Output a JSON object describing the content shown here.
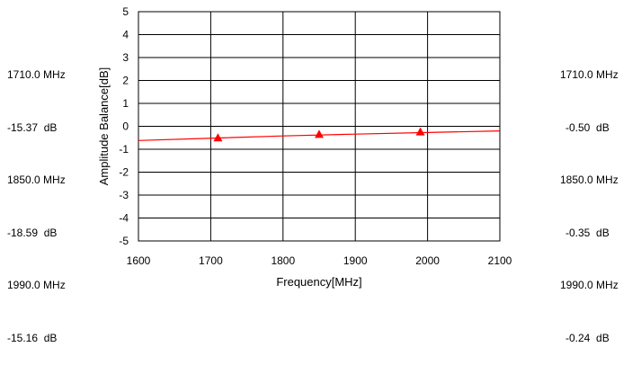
{
  "left_readout": [
    {
      "freq": "1710.0 MHz",
      "value": "-15.37  dB"
    },
    {
      "freq": "1850.0 MHz",
      "value": "-18.59  dB"
    },
    {
      "freq": "1990.0 MHz",
      "value": "-15.16  dB"
    }
  ],
  "right_readout": [
    {
      "freq": "1710.0 MHz",
      "value": "-0.50  dB"
    },
    {
      "freq": "1850.0 MHz",
      "value": "-0.35  dB"
    },
    {
      "freq": "1990.0 MHz",
      "value": "-0.24  dB"
    }
  ],
  "chart_data": {
    "type": "line",
    "title": "",
    "xlabel": "Frequency[MHz]",
    "ylabel": "Amplitude Balance[dB]",
    "xlim": [
      1600,
      2100
    ],
    "ylim": [
      -5,
      5
    ],
    "xticks": [
      1600,
      1700,
      1800,
      1900,
      2000,
      2100
    ],
    "yticks": [
      5,
      4,
      3,
      2,
      1,
      0,
      -1,
      -2,
      -3,
      -4,
      -5
    ],
    "grid": true,
    "series": [
      {
        "type": "line",
        "color": "#ff0000",
        "x": [
          1600,
          1700,
          1800,
          1900,
          2000,
          2100
        ],
        "y": [
          -0.62,
          -0.52,
          -0.42,
          -0.34,
          -0.27,
          -0.2
        ]
      },
      {
        "type": "marker",
        "marker": "triangle",
        "color": "#ff0000",
        "x": [
          1710,
          1850,
          1990
        ],
        "y": [
          -0.5,
          -0.35,
          -0.24
        ]
      }
    ]
  }
}
